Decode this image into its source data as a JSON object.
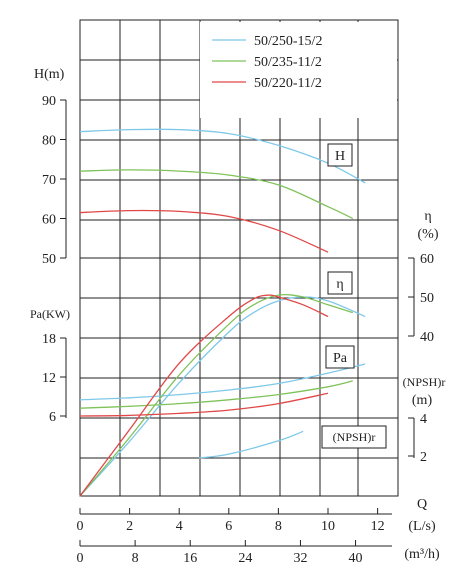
{
  "chart_data": {
    "type": "line",
    "flow_ls_ticks": [
      "0",
      "2",
      "4",
      "6",
      "8",
      "10",
      "12"
    ],
    "flow_m3h_ticks": [
      "0",
      "8",
      "16",
      "24",
      "32",
      "40"
    ],
    "flow_ls_label": "Q",
    "flow_ls_unit": "(L/s)",
    "flow_m3h_unit": "(m³/h)",
    "head_label": "H(m)",
    "head_ticks": [
      "90",
      "80",
      "70",
      "60",
      "50"
    ],
    "eff_label": "η",
    "eff_unit": "(%)",
    "eff_ticks": [
      "60",
      "50",
      "40"
    ],
    "power_label": "Pa(KW)",
    "power_ticks": [
      "18",
      "12",
      "6"
    ],
    "npsh_label": "(NPSH)r",
    "npsh_unit": "(m)",
    "npsh_ticks": [
      "4",
      "2"
    ],
    "box_labels": {
      "head": "H",
      "efficiency": "η",
      "power": "Pa",
      "npsh": "(NPSH)r"
    },
    "series": [
      {
        "name": "50/250-15/2",
        "color": "#7ec8e8",
        "head": {
          "x": [
            0,
            2,
            4,
            6,
            8,
            10,
            11.5
          ],
          "y": [
            82.0,
            82.5,
            82.5,
            81.5,
            78.5,
            74.0,
            69.0
          ]
        },
        "efficiency": {
          "x": [
            0,
            2,
            4,
            6,
            7,
            8,
            9,
            10,
            11.5
          ],
          "y": [
            0,
            13,
            28,
            41,
            46,
            49,
            50,
            49,
            45
          ]
        },
        "power": {
          "x": [
            0,
            2,
            4,
            6,
            8,
            10,
            11.5
          ],
          "y": [
            8.5,
            8.8,
            9.3,
            10.0,
            11.0,
            12.6,
            14.0
          ]
        },
        "npsh": {
          "x": [
            4.8,
            6,
            8,
            9
          ],
          "y": [
            1.9,
            2.1,
            2.8,
            3.3
          ]
        }
      },
      {
        "name": "50/235-11/2",
        "color": "#7fc25a",
        "head": {
          "x": [
            0,
            2,
            4,
            6,
            8,
            10,
            11
          ],
          "y": [
            72.0,
            72.3,
            72.0,
            71.0,
            68.5,
            63.0,
            60.0
          ]
        },
        "efficiency": {
          "x": [
            0,
            2,
            4,
            6,
            7,
            8,
            9,
            10,
            11
          ],
          "y": [
            0,
            14,
            30,
            43,
            48,
            50.5,
            50,
            48,
            46
          ]
        },
        "power": {
          "x": [
            0,
            2,
            4,
            6,
            8,
            10,
            11
          ],
          "y": [
            7.2,
            7.5,
            7.9,
            8.5,
            9.3,
            10.5,
            11.4
          ]
        }
      },
      {
        "name": "50/220-11/2",
        "color": "#e04848",
        "head": {
          "x": [
            0,
            2,
            4,
            6,
            8,
            10
          ],
          "y": [
            61.5,
            62.0,
            61.8,
            60.5,
            57.0,
            51.5
          ]
        },
        "efficiency": {
          "x": [
            0,
            2,
            4,
            6,
            7,
            7.6,
            8,
            9,
            10
          ],
          "y": [
            0,
            16,
            33,
            45,
            49.5,
            50.5,
            50,
            48,
            45
          ]
        },
        "power": {
          "x": [
            0,
            2,
            4,
            6,
            8,
            10
          ],
          "y": [
            6.0,
            6.1,
            6.4,
            6.9,
            7.9,
            9.5
          ]
        }
      }
    ]
  }
}
